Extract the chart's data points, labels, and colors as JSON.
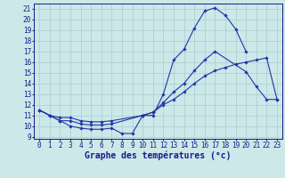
{
  "xlabel": "Graphe des températures (°c)",
  "bg_color": "#cce8e8",
  "grid_color": "#aacccc",
  "line_color": "#2233aa",
  "xmin": 0,
  "xmax": 23,
  "ymin": 9,
  "ymax": 21,
  "curve1_x": [
    0,
    1,
    2,
    3,
    4,
    5,
    6,
    7,
    8,
    9,
    10,
    11,
    12,
    13,
    14,
    15,
    16,
    17,
    18,
    19,
    20
  ],
  "curve1_y": [
    11.5,
    11.0,
    10.5,
    10.0,
    9.8,
    9.7,
    9.7,
    9.8,
    9.3,
    9.3,
    11.0,
    11.0,
    13.0,
    16.2,
    17.2,
    19.2,
    20.8,
    21.1,
    20.4,
    19.1,
    17.0
  ],
  "curve2_x": [
    0,
    1,
    2,
    3,
    4,
    5,
    6,
    7,
    10,
    11,
    12,
    13,
    14,
    15,
    16,
    17,
    20,
    21,
    22,
    23
  ],
  "curve2_y": [
    11.5,
    11.0,
    10.5,
    10.5,
    10.2,
    10.1,
    10.1,
    10.2,
    11.0,
    11.3,
    12.2,
    13.2,
    14.0,
    15.2,
    16.2,
    17.0,
    15.1,
    13.7,
    12.5,
    12.5
  ],
  "curve3_x": [
    0,
    1,
    2,
    3,
    4,
    5,
    6,
    7,
    10,
    11,
    12,
    13,
    14,
    15,
    16,
    17,
    18,
    19,
    20,
    21,
    22,
    23
  ],
  "curve3_y": [
    11.5,
    11.0,
    10.8,
    10.8,
    10.5,
    10.4,
    10.4,
    10.5,
    11.0,
    11.3,
    12.0,
    12.5,
    13.2,
    14.0,
    14.7,
    15.2,
    15.5,
    15.8,
    16.0,
    16.2,
    16.4,
    12.5
  ],
  "tick_fontsize": 5.5,
  "label_fontsize": 7
}
